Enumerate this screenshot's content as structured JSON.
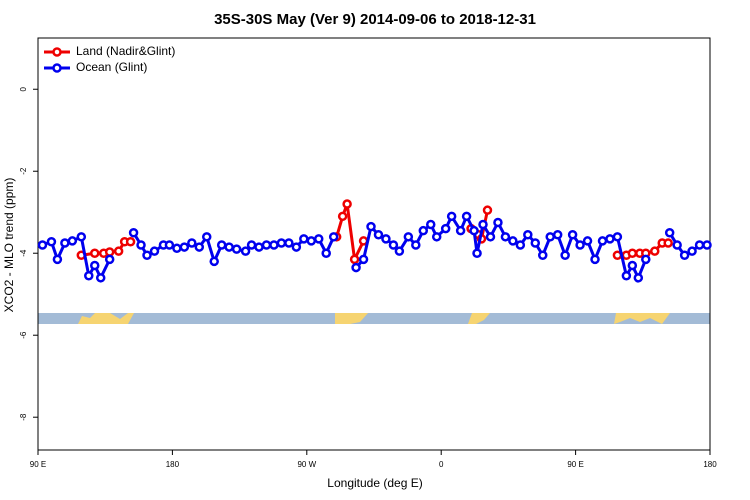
{
  "chart_data": {
    "type": "line",
    "title": "35S-30S May (Ver 9)   2014-09-06 to 2018-12-31",
    "x_label": "Longitude (deg E)",
    "y_label": "XCO2 - MLO trend (ppm)",
    "xlim": [
      90,
      540
    ],
    "xticks": [
      {
        "value": 90,
        "label": "90 E"
      },
      180,
      {
        "value": 270,
        "label": "90 W"
      },
      {
        "value": 360,
        "label": "0"
      },
      {
        "value": 450,
        "label": "90 E"
      },
      {
        "value": 540,
        "label": "180"
      }
    ],
    "ylim": [
      -8.8,
      1.25
    ],
    "yticks": [
      0,
      -2,
      -4,
      -6,
      -8
    ],
    "legend": "top-left",
    "series": [
      {
        "name": "Land (Nadir&Glint)",
        "color": "#ee0000",
        "x": [
          119,
          128,
          134,
          138,
          144,
          148,
          152,
          250,
          290,
          294,
          297,
          302,
          308,
          300,
          380,
          385,
          387,
          391,
          450,
          478,
          484,
          488,
          493,
          497,
          503,
          508,
          512
        ],
        "values": [
          -4.05,
          -4.0,
          -4.0,
          -3.97,
          -3.95,
          -3.72,
          -3.72,
          null,
          -3.6,
          -3.1,
          -2.8,
          -4.15,
          -3.7,
          null,
          -3.4,
          -3.55,
          -3.65,
          -2.95,
          null,
          -4.05,
          -4.05,
          -4.0,
          -4.0,
          -4.0,
          -3.95,
          -3.75,
          -3.75
        ]
      },
      {
        "name": "Ocean (Glint)",
        "color": "#0000ee",
        "x": [
          93,
          99,
          103,
          108,
          113,
          119,
          124,
          128,
          132,
          138,
          146,
          154,
          159,
          163,
          168,
          174,
          178,
          183,
          188,
          193,
          198,
          203,
          208,
          213,
          218,
          223,
          229,
          233,
          238,
          243,
          248,
          253,
          258,
          263,
          268,
          273,
          278,
          283,
          288,
          295,
          303,
          308,
          313,
          318,
          323,
          328,
          332,
          338,
          343,
          348,
          353,
          357,
          363,
          367,
          373,
          377,
          382,
          384,
          388,
          393,
          398,
          403,
          408,
          413,
          418,
          423,
          428,
          433,
          438,
          443,
          448,
          453,
          458,
          463,
          468,
          473,
          478,
          484,
          488,
          492,
          497,
          505,
          513,
          518,
          523,
          528,
          533,
          538
        ],
        "values": [
          -3.8,
          -3.72,
          -4.15,
          -3.75,
          -3.7,
          -3.6,
          -4.55,
          -4.3,
          -4.6,
          -4.15,
          null,
          -3.5,
          -3.8,
          -4.05,
          -3.95,
          -3.8,
          -3.8,
          -3.88,
          -3.85,
          -3.75,
          -3.85,
          -3.6,
          -4.2,
          -3.8,
          -3.85,
          -3.9,
          -3.95,
          -3.8,
          -3.85,
          -3.8,
          -3.8,
          -3.75,
          -3.75,
          -3.85,
          -3.65,
          -3.7,
          -3.65,
          -4.0,
          -3.6,
          null,
          -4.35,
          -4.15,
          -3.35,
          -3.55,
          -3.65,
          -3.8,
          -3.95,
          -3.6,
          -3.8,
          -3.45,
          -3.3,
          -3.6,
          -3.4,
          -3.1,
          -3.45,
          -3.1,
          -3.45,
          -4.0,
          -3.3,
          -3.6,
          -3.25,
          -3.6,
          -3.7,
          -3.8,
          -3.55,
          -3.75,
          -4.05,
          -3.6,
          -3.55,
          -4.05,
          -3.55,
          -3.8,
          -3.7,
          -4.15,
          -3.7,
          -3.65,
          -3.6,
          -4.55,
          -4.3,
          -4.6,
          -4.15,
          null,
          -3.5,
          -3.8,
          -4.05,
          -3.95,
          -3.8,
          -3.8
        ]
      }
    ]
  }
}
